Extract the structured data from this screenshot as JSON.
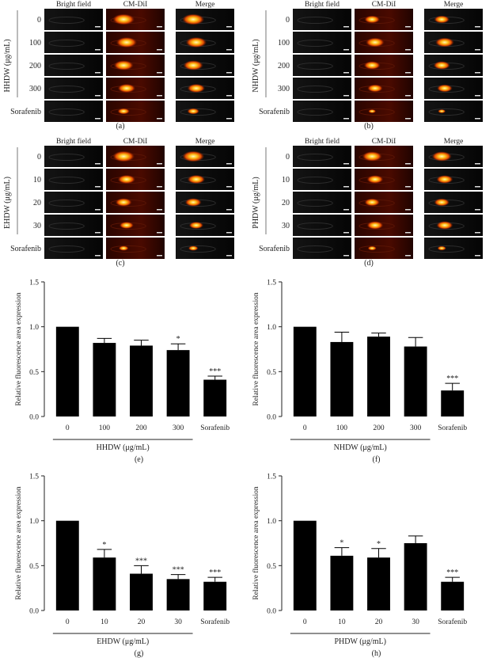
{
  "figure": {
    "image_panels": [
      {
        "label": "(a)",
        "ylabel": "HHDW (μg/mL)",
        "columns": [
          "Bright field",
          "CM-DiI",
          "Merge"
        ],
        "rows": [
          "0",
          "100",
          "200",
          "300",
          "Sorafenib"
        ]
      },
      {
        "label": "(b)",
        "ylabel": "NHDW (μg/mL)",
        "columns": [
          "Bright field",
          "CM-DiI",
          "Merge"
        ],
        "rows": [
          "0",
          "100",
          "200",
          "300",
          "Sorafenib"
        ]
      },
      {
        "label": "(c)",
        "ylabel": "EHDW (μg/mL)",
        "columns": [
          "Bright field",
          "CM-DiI",
          "Merge"
        ],
        "rows": [
          "0",
          "10",
          "20",
          "30",
          "Sorafenib"
        ]
      },
      {
        "label": "(d)",
        "ylabel": "PHDW (μg/mL)",
        "columns": [
          "Bright field",
          "CM-DiI",
          "Merge"
        ],
        "rows": [
          "0",
          "10",
          "20",
          "30",
          "Sorafenib"
        ]
      }
    ]
  },
  "chart_data": [
    {
      "type": "bar",
      "label": "(e)",
      "ylabel": "Relative fluorescence area expression",
      "xlabel": "HHDW (μg/mL)",
      "ylim": [
        0,
        1.5
      ],
      "yticks": [
        "0.0",
        "0.5",
        "1.0",
        "1.5"
      ],
      "categories": [
        "0",
        "100",
        "200",
        "300",
        "Sorafenib"
      ],
      "values": [
        1.0,
        0.82,
        0.79,
        0.74,
        0.41
      ],
      "errors": [
        0,
        0.05,
        0.06,
        0.07,
        0.04
      ],
      "significance": [
        "",
        "",
        "",
        "*",
        "***"
      ]
    },
    {
      "type": "bar",
      "label": "(f)",
      "ylabel": "Relative fluorescence area expression",
      "xlabel": "NHDW (μg/mL)",
      "ylim": [
        0,
        1.5
      ],
      "yticks": [
        "0.0",
        "0.5",
        "1.0",
        "1.5"
      ],
      "categories": [
        "0",
        "100",
        "200",
        "300",
        "Sorafenib"
      ],
      "values": [
        1.0,
        0.83,
        0.89,
        0.78,
        0.29
      ],
      "errors": [
        0,
        0.11,
        0.04,
        0.1,
        0.08
      ],
      "significance": [
        "",
        "",
        "",
        "",
        "***"
      ]
    },
    {
      "type": "bar",
      "label": "(g)",
      "ylabel": "Relative fluorescence area expression",
      "xlabel": "EHDW (μg/mL)",
      "ylim": [
        0,
        1.5
      ],
      "yticks": [
        "0.0",
        "0.5",
        "1.0",
        "1.5"
      ],
      "categories": [
        "0",
        "10",
        "20",
        "30",
        "Sorafenib"
      ],
      "values": [
        1.0,
        0.59,
        0.41,
        0.35,
        0.32
      ],
      "errors": [
        0,
        0.09,
        0.09,
        0.05,
        0.05
      ],
      "significance": [
        "",
        "*",
        "***",
        "***",
        "***"
      ]
    },
    {
      "type": "bar",
      "label": "(h)",
      "ylabel": "Relative fluorescence area expression",
      "xlabel": "PHDW (μg/mL)",
      "ylim": [
        0,
        1.5
      ],
      "yticks": [
        "0.0",
        "0.5",
        "1.0",
        "1.5"
      ],
      "categories": [
        "0",
        "10",
        "20",
        "30",
        "Sorafenib"
      ],
      "values": [
        1.0,
        0.61,
        0.59,
        0.75,
        0.32
      ],
      "errors": [
        0,
        0.09,
        0.1,
        0.08,
        0.05
      ],
      "significance": [
        "",
        "*",
        "*",
        "",
        "***"
      ]
    }
  ],
  "colors": {
    "bar": "#000000",
    "text": "#222222",
    "micro_bg": "#0b0b0b",
    "fluor_bg": "#3a0800",
    "fluor_spot": "#ffb300"
  }
}
